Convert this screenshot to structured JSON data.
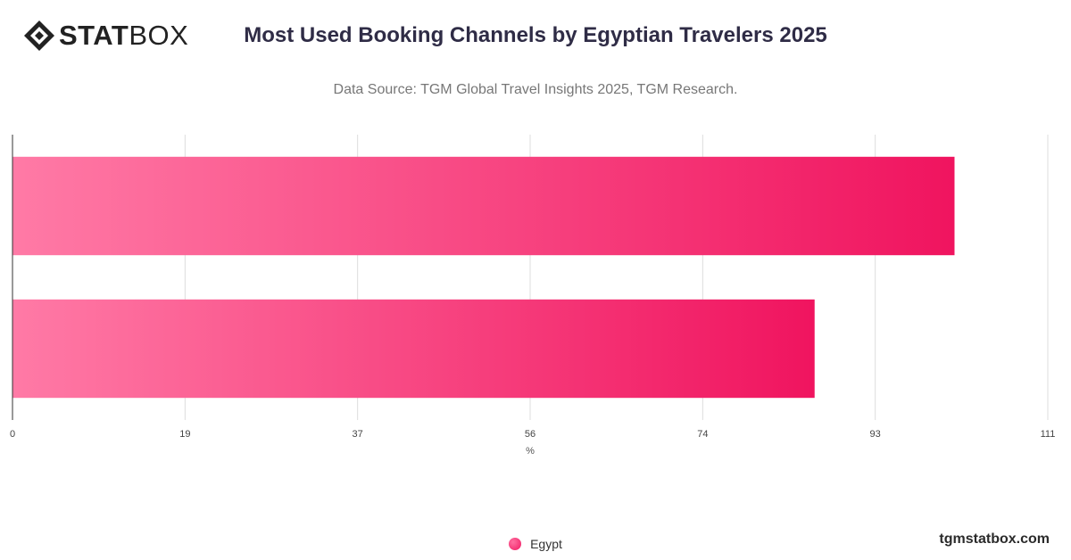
{
  "brand": {
    "logo_bold": "STAT",
    "logo_light": "BOX",
    "footer": "tgmstatbox.com"
  },
  "header": {
    "title": "Most Used Booking Channels by Egyptian Travelers 2025",
    "subtitle": "Data Source: TGM Global Travel Insights 2025, TGM Research."
  },
  "colors": {
    "bar_start": "#ff7aa6",
    "bar_end": "#f0145f",
    "grid": "#dddddd",
    "axis": "#333333"
  },
  "chart_data": {
    "type": "bar",
    "orientation": "horizontal",
    "categories": [
      "",
      ""
    ],
    "series": [
      {
        "name": "Egypt",
        "values": [
          101,
          86
        ]
      }
    ],
    "xlabel": "%",
    "xlim": [
      0,
      111
    ],
    "x_ticks": [
      "0",
      "19",
      "37",
      "56",
      "74",
      "93",
      "111"
    ],
    "x_tick_values": [
      0,
      18.5,
      37,
      55.5,
      74,
      92.5,
      111
    ],
    "grid": true,
    "legend": "bottom-center"
  }
}
